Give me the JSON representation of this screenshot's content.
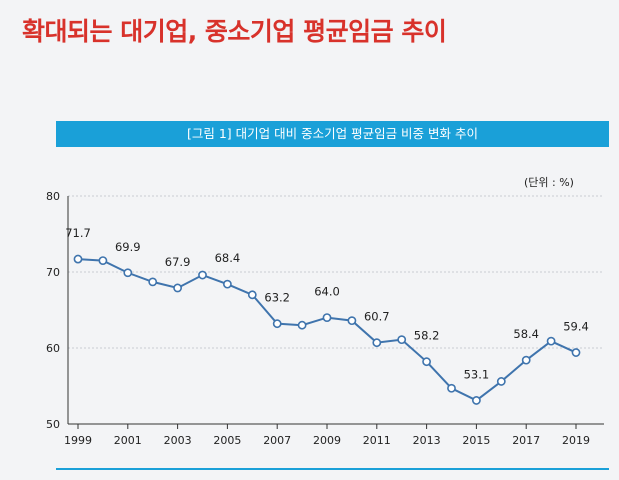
{
  "headline": "확대되는 대기업, 중소기업 평균임금 추이",
  "chart_data": {
    "type": "line",
    "title": "[그림 1] 대기업 대비 중소기업 평균임금 비중 변화 추이",
    "unit_label": "(단위 : %)",
    "xlabel": "",
    "ylabel": "",
    "x": [
      1999,
      2000,
      2001,
      2002,
      2003,
      2004,
      2005,
      2006,
      2007,
      2008,
      2009,
      2010,
      2011,
      2012,
      2013,
      2014,
      2015,
      2016,
      2017,
      2018,
      2019
    ],
    "x_tick_labels": [
      "1999",
      "2001",
      "2003",
      "2005",
      "2007",
      "2009",
      "2011",
      "2013",
      "2015",
      "2017",
      "2019"
    ],
    "series": [
      {
        "values": [
          71.7,
          71.5,
          69.9,
          68.7,
          67.9,
          69.6,
          68.4,
          67.0,
          63.2,
          63.0,
          64.0,
          63.6,
          60.7,
          61.1,
          58.2,
          54.7,
          53.1,
          55.6,
          58.4,
          60.9,
          59.4
        ],
        "data_labels": [
          {
            "x": 1999,
            "text": "71.7"
          },
          {
            "x": 2001,
            "text": "69.9"
          },
          {
            "x": 2003,
            "text": "67.9"
          },
          {
            "x": 2005,
            "text": "68.4"
          },
          {
            "x": 2007,
            "text": "63.2"
          },
          {
            "x": 2009,
            "text": "64.0"
          },
          {
            "x": 2011,
            "text": "60.7"
          },
          {
            "x": 2013,
            "text": "58.2"
          },
          {
            "x": 2015,
            "text": "53.1"
          },
          {
            "x": 2017,
            "text": "58.4"
          },
          {
            "x": 2019,
            "text": "59.4"
          }
        ]
      }
    ],
    "y_ticks": [
      50,
      60,
      70,
      80
    ],
    "ylim": [
      50,
      80
    ],
    "grid": true,
    "colors": {
      "line": "#3f74ad",
      "marker_fill": "#ffffff",
      "grid": "#c9cdd3"
    }
  }
}
